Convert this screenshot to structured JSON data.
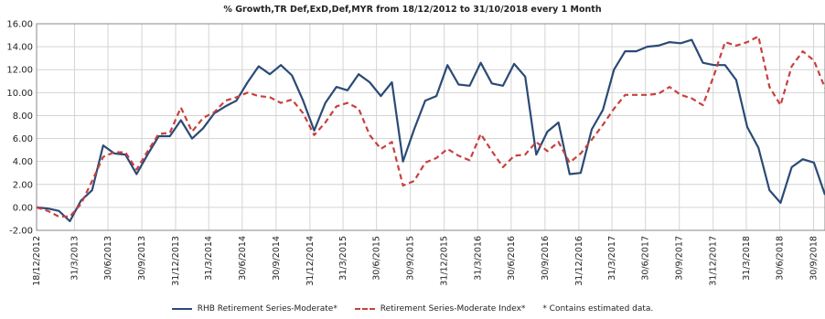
{
  "chart_data": {
    "type": "line",
    "title": "% Growth,TR Def,ExD,Def,MYR from 18/12/2012 to 31/10/2018 every 1 Month",
    "ylim": [
      -2,
      16
    ],
    "y_ticks": [
      "-2.00",
      "0.00",
      "2.00",
      "4.00",
      "6.00",
      "8.00",
      "10.00",
      "12.00",
      "14.00",
      "16.00"
    ],
    "x_range": [
      "2012-12-18",
      "2018-10-31"
    ],
    "x_ticks": [
      "18/12/2012",
      "31/3/2013",
      "30/6/2013",
      "30/9/2013",
      "31/12/2013",
      "31/3/2014",
      "30/6/2014",
      "30/9/2014",
      "31/12/2014",
      "31/3/2015",
      "30/6/2015",
      "30/9/2015",
      "31/12/2015",
      "31/3/2016",
      "30/6/2016",
      "30/9/2016",
      "31/12/2016",
      "31/3/2017",
      "30/6/2017",
      "30/9/2017",
      "31/12/2017",
      "31/3/2018",
      "30/6/2018",
      "30/9/2018"
    ],
    "grid": true,
    "legend_position": "bottom",
    "series": [
      {
        "name": "RHB Retirement Series-Moderate*",
        "color": "#2b4a76",
        "style": "solid",
        "values": [
          0.0,
          -0.1,
          -0.3,
          -1.2,
          0.6,
          1.5,
          5.4,
          4.7,
          4.6,
          2.9,
          4.6,
          6.2,
          6.2,
          7.6,
          6.0,
          6.9,
          8.2,
          8.8,
          9.3,
          10.9,
          12.3,
          11.6,
          12.4,
          11.5,
          9.3,
          6.7,
          9.1,
          10.5,
          10.2,
          11.6,
          10.9,
          9.7,
          10.9,
          4.0,
          6.8,
          9.3,
          9.7,
          12.4,
          10.7,
          10.6,
          12.6,
          10.8,
          10.6,
          12.5,
          11.4,
          4.6,
          6.6,
          7.4,
          2.9,
          3.0,
          6.8,
          8.5,
          12.0,
          13.6,
          13.6,
          14.0,
          14.1,
          14.4,
          14.3,
          14.6,
          12.6,
          12.4,
          12.4,
          11.1,
          7.0,
          5.2,
          1.5,
          0.4,
          3.5,
          4.2,
          3.9,
          1.1
        ]
      },
      {
        "name": "Retirement Series-Moderate Index*",
        "color": "#c8413e",
        "style": "dashed",
        "values": [
          0.0,
          -0.3,
          -0.8,
          -0.8,
          0.3,
          2.3,
          4.4,
          4.8,
          4.8,
          3.3,
          4.9,
          6.4,
          6.5,
          8.7,
          6.6,
          7.8,
          8.3,
          9.3,
          9.6,
          10.0,
          9.7,
          9.6,
          9.1,
          9.4,
          8.2,
          6.3,
          7.4,
          8.8,
          9.1,
          8.6,
          6.3,
          5.1,
          5.7,
          1.9,
          2.3,
          3.9,
          4.3,
          5.1,
          4.5,
          4.1,
          6.4,
          4.9,
          3.5,
          4.5,
          4.6,
          5.7,
          4.9,
          5.7,
          3.9,
          4.7,
          5.9,
          7.2,
          8.6,
          9.8,
          9.8,
          9.8,
          9.9,
          10.5,
          9.8,
          9.5,
          8.9,
          11.5,
          14.4,
          14.1,
          14.4,
          14.9,
          10.5,
          8.9,
          12.3,
          13.6,
          12.8,
          10.4
        ]
      }
    ]
  },
  "legend": {
    "series_1": "RHB Retirement Series-Moderate*",
    "series_2": "Retirement Series-Moderate Index*",
    "note": "*  Contains estimated data."
  }
}
